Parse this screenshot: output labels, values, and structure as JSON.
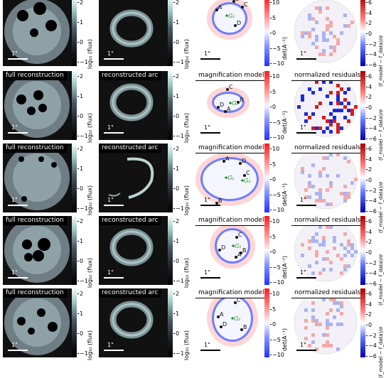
{
  "colors": {
    "dark_bg": "#111111",
    "flux_low": "#000000",
    "flux_high": "#f2fbfb",
    "mag_blue": "#2233ff",
    "mag_red": "#ff1a1a",
    "resid_blue": "#0000aa",
    "resid_red": "#aa0000"
  },
  "scale_label": "1\"",
  "panel_titles": {
    "full": "full reconstruction",
    "arc": "reconstructed arc",
    "mag": "magnification model",
    "resid": "normalized residuals"
  },
  "cbar_labels": {
    "flux": "log₁₀ (flux)",
    "mag": "det(A⁻¹)",
    "resid": "(f_model − f_data)/σ"
  },
  "ticks": {
    "flux": [
      "2",
      "1",
      "0",
      "−1"
    ],
    "mag": [
      "10",
      "5",
      "0",
      "−5",
      "−10"
    ],
    "resid": [
      "6",
      "4",
      "2",
      "0",
      "−2",
      "−4",
      "−6"
    ]
  },
  "rows": [
    {
      "titles_visible": false,
      "points": [
        "A",
        "B",
        "C",
        "D"
      ],
      "galaxies": [
        "G₁"
      ]
    },
    {
      "titles_visible": true,
      "points": [
        "A",
        "B",
        "C",
        "D"
      ],
      "galaxies": [
        "G₁"
      ]
    },
    {
      "titles_visible": true,
      "points": [
        "A",
        "B",
        "C",
        "D"
      ],
      "galaxies": [
        "G₁",
        "G₂"
      ]
    },
    {
      "titles_visible": true,
      "points": [
        "A",
        "B",
        "C",
        "D"
      ],
      "galaxies": [
        "G₁"
      ]
    },
    {
      "titles_visible": true,
      "points": [
        "A",
        "B",
        "C",
        "D"
      ],
      "galaxies": [
        "G₁"
      ]
    }
  ]
}
